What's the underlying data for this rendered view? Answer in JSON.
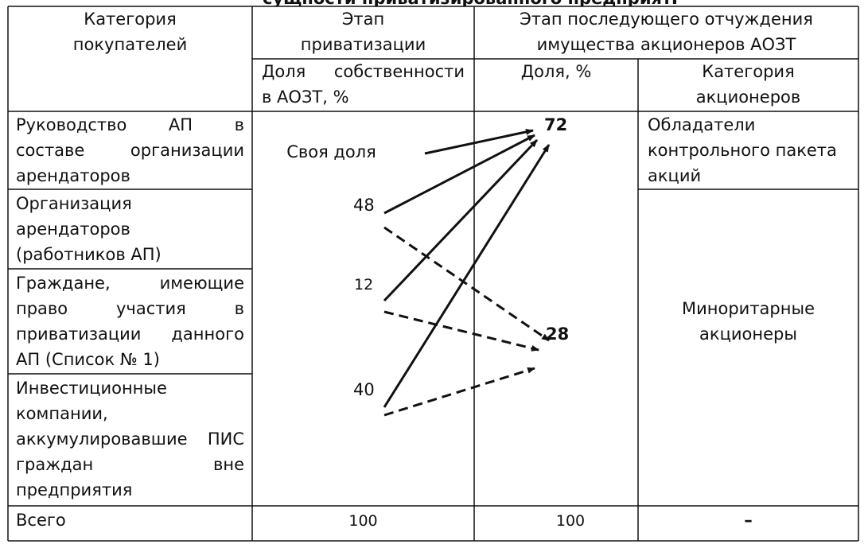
{
  "header": {
    "cut_title": "сущности приватизированного предприятия (пример)",
    "col1": [
      "Категория",
      "покупателей"
    ],
    "col2": [
      "Этап",
      "приватизации"
    ],
    "col34": [
      "Этап последующего отчуждения",
      "имущества акционеров АОЗТ"
    ],
    "col2_sub": [
      "Доля  собственности",
      "в АОЗТ, %"
    ],
    "col3_sub": "Доля, %",
    "col4_sub": [
      "Категория",
      "акционеров"
    ]
  },
  "rows": [
    {
      "category": [
        "Руководство АП в",
        "составе организации",
        "арендаторов"
      ],
      "share": "Своя доля"
    },
    {
      "category": [
        "Организация",
        "арендаторов",
        "(работников АП)"
      ],
      "share": "48"
    },
    {
      "category": [
        "Граждане, имеющие",
        "право участия в",
        "приватизации данного",
        "АП (Список № 1)"
      ],
      "share": "12"
    },
    {
      "category": [
        "Инвестиционные",
        "компании,",
        "аккумулировавшие ПИС",
        "граждан вне",
        "предприятия"
      ],
      "share": "40"
    }
  ],
  "result": {
    "majority_share": "72",
    "minority_share": "28",
    "majority_category": [
      "Обладатели",
      "контрольного пакета",
      "акций"
    ],
    "minority_category": [
      "Миноритарные",
      "акционеры"
    ]
  },
  "total": {
    "label": "Всего",
    "col2": "100",
    "col3": "100",
    "col4": "–"
  }
}
